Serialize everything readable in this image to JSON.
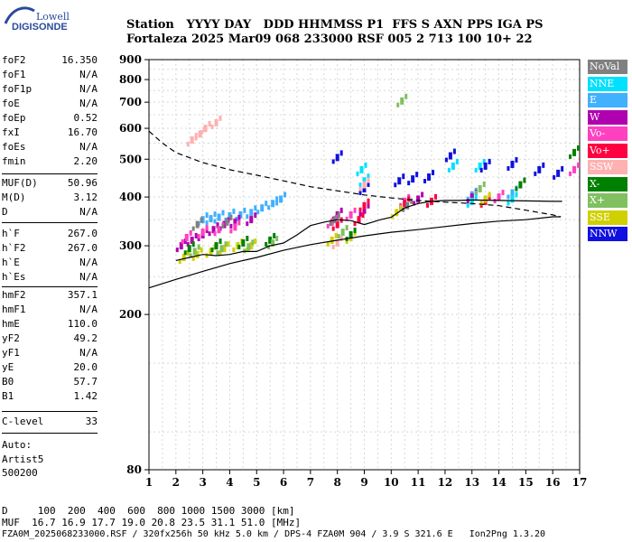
{
  "logo": {
    "line1": "Lowell",
    "line2": "DIGISONDE"
  },
  "header": {
    "row1": "Station   YYYY DAY   DDD HHMMSS P1  FFS S AXN PPS IGA PS",
    "row2": "Fortaleza 2025 Mar09 068 233000 RSF 005 2 713 100 10+ 22"
  },
  "side_params": [
    {
      "name": "foF2",
      "value": "16.350"
    },
    {
      "name": "foF1",
      "value": "N/A"
    },
    {
      "name": "foF1p",
      "value": "N/A"
    },
    {
      "name": "foE",
      "value": "N/A"
    },
    {
      "name": "foEp",
      "value": "0.52"
    },
    {
      "name": "fxI",
      "value": "16.70"
    },
    {
      "name": "foEs",
      "value": "N/A"
    },
    {
      "name": "fmin",
      "value": "2.20"
    },
    {
      "name": "MUF(D)",
      "value": "50.96"
    },
    {
      "name": "M(D)",
      "value": "3.12"
    },
    {
      "name": "D",
      "value": "N/A"
    },
    {
      "name": "h`F",
      "value": "267.0"
    },
    {
      "name": "h`F2",
      "value": "267.0"
    },
    {
      "name": "h`E",
      "value": "N/A"
    },
    {
      "name": "h`Es",
      "value": "N/A"
    },
    {
      "name": "hmF2",
      "value": "357.1"
    },
    {
      "name": "hmF1",
      "value": "N/A"
    },
    {
      "name": "hmE",
      "value": "110.0"
    },
    {
      "name": "yF2",
      "value": "49.2"
    },
    {
      "name": "yF1",
      "value": "N/A"
    },
    {
      "name": "yE",
      "value": "20.0"
    },
    {
      "name": "B0",
      "value": "57.7"
    },
    {
      "name": "B1",
      "value": "1.42"
    },
    {
      "name": "C-level",
      "value": "33"
    }
  ],
  "auto": {
    "line1": "Auto:",
    "line2": "Artist5",
    "line3": "500200"
  },
  "legend": [
    {
      "label": "NoVal",
      "color": "#808080"
    },
    {
      "label": "NNE",
      "color": "#00e0ff"
    },
    {
      "label": "E",
      "color": "#40b0ff"
    },
    {
      "label": "W",
      "color": "#b000b0"
    },
    {
      "label": "Vo-",
      "color": "#ff40c0"
    },
    {
      "label": "Vo+",
      "color": "#ff0040"
    },
    {
      "label": "SSW",
      "color": "#ffb0b0"
    },
    {
      "label": "X-",
      "color": "#008000"
    },
    {
      "label": "X+",
      "color": "#80c060"
    },
    {
      "label": "SSE",
      "color": "#d0d000"
    },
    {
      "label": "NNW",
      "color": "#1010e0"
    }
  ],
  "footer": {
    "d_row": "D     100  200  400  600  800 1000 1500 3000 [km]",
    "muf_row": "MUF  16.7 16.9 17.7 19.0 20.8 23.5 31.1 51.0 [MHz]",
    "file_row": "FZA0M_2025068233000.RSF / 320fx256h 50 kHz 5.0 km / DPS-4 FZA0M 904 / 3.9 S 321.6 E   Ion2Png 1.3.20"
  },
  "chart_data": {
    "type": "scatter",
    "xlim": [
      1,
      17
    ],
    "ylim": [
      80,
      900
    ],
    "yscale": "log",
    "x_ticks": [
      1,
      2,
      3,
      4,
      5,
      6,
      7,
      8,
      9,
      10,
      11,
      12,
      13,
      14,
      15,
      16,
      17
    ],
    "y_ticks": [
      80,
      200,
      300,
      400,
      500,
      600,
      700,
      800,
      900
    ],
    "grid": true,
    "series": [
      {
        "name": "E",
        "color": "#40b0ff",
        "points": [
          [
            3.0,
            350
          ],
          [
            3.3,
            352
          ],
          [
            3.6,
            355
          ],
          [
            4.0,
            358
          ],
          [
            4.4,
            360
          ],
          [
            4.8,
            365
          ],
          [
            5.2,
            375
          ],
          [
            5.6,
            385
          ],
          [
            5.9,
            395
          ],
          [
            9.0,
            430
          ],
          [
            13.0,
            405
          ],
          [
            14.5,
            410
          ]
        ]
      },
      {
        "name": "W",
        "color": "#b000b0",
        "points": [
          [
            2.2,
            300
          ],
          [
            2.6,
            310
          ],
          [
            3.0,
            320
          ],
          [
            3.4,
            330
          ],
          [
            3.8,
            340
          ],
          [
            4.2,
            345
          ],
          [
            4.8,
            350
          ],
          [
            8.0,
            360
          ],
          [
            9.0,
            370
          ],
          [
            11.0,
            395
          ],
          [
            13.0,
            400
          ]
        ]
      },
      {
        "name": "Vo-",
        "color": "#ff40c0",
        "points": [
          [
            2.4,
            315
          ],
          [
            3.0,
            325
          ],
          [
            3.6,
            330
          ],
          [
            4.2,
            335
          ],
          [
            7.8,
            345
          ],
          [
            8.5,
            360
          ],
          [
            10.5,
            390
          ],
          [
            14.0,
            400
          ],
          [
            16.8,
            470
          ]
        ]
      },
      {
        "name": "Vo+",
        "color": "#ff0040",
        "points": [
          [
            8.0,
            340
          ],
          [
            8.8,
            350
          ],
          [
            9.0,
            380
          ],
          [
            10.5,
            385
          ],
          [
            11.5,
            390
          ],
          [
            13.5,
            390
          ]
        ]
      },
      {
        "name": "SSE",
        "color": "#d0d000",
        "points": [
          [
            2.3,
            280
          ],
          [
            2.8,
            285
          ],
          [
            3.3,
            290
          ],
          [
            3.8,
            295
          ],
          [
            4.3,
            300
          ],
          [
            4.8,
            300
          ],
          [
            7.8,
            310
          ],
          [
            8.5,
            315
          ],
          [
            10.2,
            365
          ],
          [
            13.5,
            395
          ]
        ]
      },
      {
        "name": "X-",
        "color": "#008000",
        "points": [
          [
            2.5,
            295
          ],
          [
            3.5,
            300
          ],
          [
            4.5,
            305
          ],
          [
            5.5,
            310
          ],
          [
            8.5,
            320
          ],
          [
            14.8,
            430
          ],
          [
            16.8,
            520
          ]
        ]
      },
      {
        "name": "X+",
        "color": "#80c060",
        "points": [
          [
            2.7,
            290
          ],
          [
            3.7,
            295
          ],
          [
            4.7,
            298
          ],
          [
            5.6,
            305
          ],
          [
            8.2,
            325
          ],
          [
            10.4,
            705
          ],
          [
            13.3,
            420
          ]
        ]
      },
      {
        "name": "NNE",
        "color": "#00e0ff",
        "points": [
          [
            8.9,
            470
          ],
          [
            9.0,
            440
          ],
          [
            12.3,
            480
          ],
          [
            13.3,
            480
          ],
          [
            13.0,
            390
          ],
          [
            14.5,
            395
          ]
        ]
      },
      {
        "name": "NNW",
        "color": "#1010e0",
        "points": [
          [
            8.0,
            505
          ],
          [
            9.0,
            420
          ],
          [
            10.3,
            440
          ],
          [
            10.8,
            445
          ],
          [
            11.4,
            450
          ],
          [
            12.2,
            510
          ],
          [
            13.5,
            480
          ],
          [
            14.5,
            485
          ],
          [
            15.5,
            470
          ],
          [
            16.2,
            460
          ]
        ]
      },
      {
        "name": "SSW",
        "color": "#ffb0b0",
        "points": [
          [
            2.6,
            560
          ],
          [
            2.9,
            580
          ],
          [
            3.1,
            600
          ],
          [
            3.5,
            620
          ],
          [
            8.0,
            305
          ],
          [
            9.0,
            430
          ]
        ]
      },
      {
        "name": "NoVal",
        "color": "#808080",
        "points": [
          [
            2.8,
            340
          ],
          [
            3.9,
            345
          ],
          [
            7.9,
            350
          ],
          [
            10.6,
            380
          ]
        ]
      }
    ],
    "profile_dashed": [
      [
        1,
        590
      ],
      [
        1.5,
        550
      ],
      [
        2,
        520
      ],
      [
        3,
        490
      ],
      [
        4,
        470
      ],
      [
        5,
        455
      ],
      [
        6,
        440
      ],
      [
        7,
        425
      ],
      [
        8,
        415
      ],
      [
        9,
        405
      ],
      [
        10,
        398
      ],
      [
        11,
        392
      ],
      [
        12,
        388
      ],
      [
        13,
        385
      ],
      [
        14,
        380
      ],
      [
        15,
        370
      ],
      [
        16,
        360
      ],
      [
        16.3,
        356
      ]
    ],
    "trace_solid": [
      [
        1,
        234
      ],
      [
        2,
        246
      ],
      [
        3,
        258
      ],
      [
        4,
        270
      ],
      [
        5,
        280
      ],
      [
        6,
        292
      ],
      [
        7,
        302
      ],
      [
        8,
        310
      ],
      [
        9,
        318
      ],
      [
        10,
        325
      ],
      [
        11,
        330
      ],
      [
        12,
        336
      ],
      [
        13,
        342
      ],
      [
        14,
        347
      ],
      [
        15,
        350
      ],
      [
        16,
        356
      ],
      [
        16.3,
        356
      ]
    ],
    "trace_dark": [
      [
        2,
        275
      ],
      [
        2.5,
        280
      ],
      [
        3,
        285
      ],
      [
        3.5,
        283
      ],
      [
        4,
        285
      ],
      [
        4.5,
        290
      ],
      [
        5,
        290
      ],
      [
        5.5,
        300
      ],
      [
        6,
        305
      ],
      [
        6.5,
        320
      ],
      [
        7,
        338
      ],
      [
        7.5,
        345
      ],
      [
        8,
        350
      ],
      [
        8.5,
        348
      ],
      [
        9,
        340
      ],
      [
        9.3,
        345
      ],
      [
        9.6,
        350
      ],
      [
        10,
        355
      ],
      [
        10.5,
        375
      ],
      [
        11,
        385
      ],
      [
        11.5,
        390
      ],
      [
        12,
        392
      ],
      [
        12.5,
        392
      ],
      [
        13,
        393
      ],
      [
        14,
        392
      ],
      [
        15,
        391
      ],
      [
        16,
        390
      ],
      [
        16.35,
        390
      ]
    ]
  }
}
